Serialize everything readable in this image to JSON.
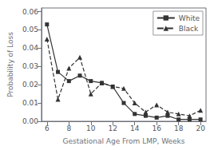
{
  "chart_data": {
    "type": "line",
    "xlabel": "Gestational Age From LMP, Weeks",
    "ylabel": "Probability of Loss",
    "xlim": [
      5.5,
      20.5
    ],
    "xticks": [
      6,
      8,
      10,
      12,
      14,
      16,
      18,
      20
    ],
    "ylim": [
      0.0,
      0.062
    ],
    "yticks": [
      {
        "value": 0,
        "label": "0.00"
      },
      0.01,
      0.02,
      0.03,
      0.04,
      0.05,
      0.06
    ],
    "grid": false,
    "legend": "upper right",
    "series": [
      {
        "name": "White",
        "color": "#333333",
        "marker": "square",
        "line_style": "solid",
        "x": [
          6,
          7,
          8,
          9,
          10,
          11,
          12,
          13,
          14,
          15,
          16,
          17,
          18,
          19,
          20
        ],
        "values": [
          0.053,
          0.027,
          0.022,
          0.025,
          0.022,
          0.021,
          0.019,
          0.01,
          0.004,
          0.003,
          0.002,
          0.003,
          0.001,
          0.001,
          0.001
        ]
      },
      {
        "name": "Black",
        "color": "#333333",
        "marker": "triangle",
        "line_style": "dashed",
        "x": [
          6,
          7,
          8,
          9,
          10,
          11,
          12,
          13,
          14,
          15,
          16,
          17,
          18,
          19,
          20
        ],
        "values": [
          0.045,
          0.012,
          0.029,
          0.035,
          0.015,
          0.021,
          0.019,
          0.018,
          0.01,
          0.005,
          0.009,
          0.005,
          0.004,
          0.003,
          0.006
        ]
      }
    ]
  }
}
